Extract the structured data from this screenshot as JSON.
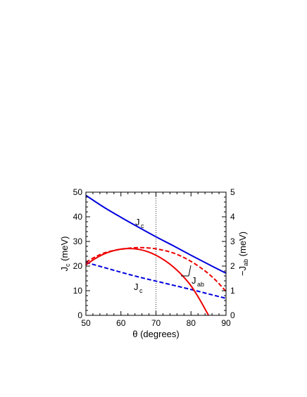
{
  "chart_data": {
    "type": "line",
    "xlabel": "θ (degrees)",
    "ylabel_left": {
      "main": "J",
      "sub": "c",
      "unit": " (meV)"
    },
    "ylabel_right": {
      "prefix": "−J",
      "sub": "ab",
      "unit": " (meV)"
    },
    "xlim": [
      50,
      90
    ],
    "ylim_left": [
      0,
      50
    ],
    "ylim_right": [
      0,
      5
    ],
    "xticks": [
      "50",
      "60",
      "70",
      "80",
      "90"
    ],
    "yticks_left": [
      "0",
      "10",
      "20",
      "30",
      "40",
      "50"
    ],
    "yticks_right": [
      "0",
      "1",
      "2",
      "3",
      "4",
      "5"
    ],
    "vline_x": 70,
    "annotations": [
      {
        "main": "J",
        "sub": "c"
      },
      {
        "main": "J",
        "sub": "c"
      },
      {
        "main": "J",
        "sub": "ab"
      }
    ],
    "series": [
      {
        "axis": "left",
        "color": "#0000dd",
        "style": "solid",
        "x": [
          50,
          55,
          60,
          65,
          70,
          75,
          80,
          85,
          90
        ],
        "y": [
          48.7,
          44.0,
          39.8,
          35.8,
          31.9,
          28.2,
          24.4,
          20.7,
          17.1
        ]
      },
      {
        "axis": "left",
        "color": "#0000dd",
        "style": "dashed",
        "x": [
          50,
          55,
          60,
          65,
          70,
          75,
          80,
          85,
          90
        ],
        "y": [
          21.5,
          19.5,
          17.5,
          15.6,
          13.9,
          12.2,
          10.5,
          8.7,
          6.9
        ]
      },
      {
        "axis": "right",
        "color": "#ee0000",
        "style": "solid",
        "x": [
          50,
          52.5,
          55,
          57.5,
          60,
          62.5,
          65,
          67.5,
          70,
          72.5,
          75,
          77.5,
          80,
          82.5,
          85
        ],
        "y": [
          2.05,
          2.29,
          2.48,
          2.61,
          2.69,
          2.71,
          2.68,
          2.59,
          2.44,
          2.23,
          1.96,
          1.62,
          1.2,
          0.64,
          0.0
        ]
      },
      {
        "axis": "right",
        "color": "#ee0000",
        "style": "dashed",
        "x": [
          50,
          52.5,
          55,
          57.5,
          60,
          62.5,
          65,
          67.5,
          70,
          72.5,
          75,
          77.5,
          80,
          82.5,
          85,
          87.5,
          90
        ],
        "y": [
          2.15,
          2.36,
          2.52,
          2.62,
          2.68,
          2.73,
          2.75,
          2.74,
          2.7,
          2.63,
          2.53,
          2.38,
          2.19,
          1.96,
          1.69,
          1.36,
          0.97
        ]
      }
    ]
  }
}
